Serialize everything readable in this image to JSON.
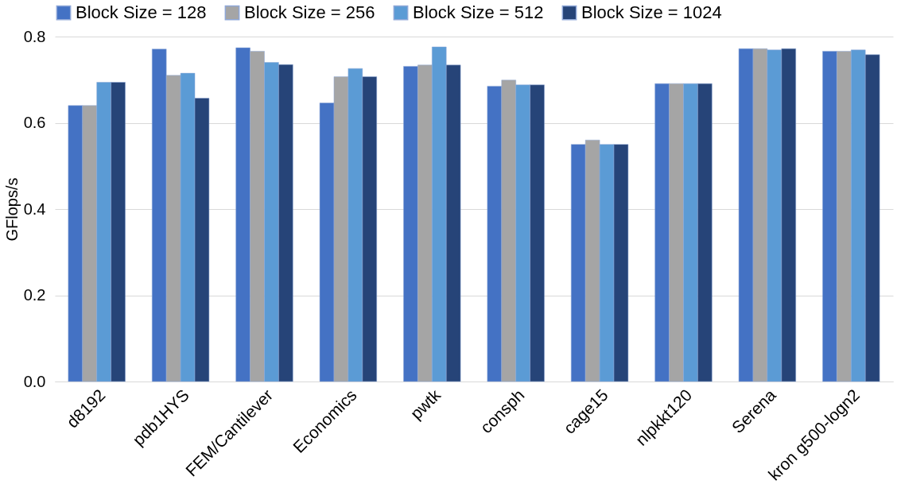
{
  "chart_data": {
    "type": "bar",
    "ylabel": "GFlops/s",
    "categories": [
      "d8192",
      "pdb1HYS",
      "FEM/Cantilever",
      "Economics",
      "pwtk",
      "consph",
      "cage15",
      "nlpkkt120",
      "Serena",
      "kron g500-logn2"
    ],
    "series": [
      {
        "name": "Block Size = 128",
        "color": "#4472c4",
        "values": [
          0.64,
          0.771,
          0.774,
          0.646,
          0.731,
          0.685,
          0.55,
          0.691,
          0.772,
          0.766
        ]
      },
      {
        "name": "Block Size = 256",
        "color": "#a5a5a5",
        "values": [
          0.64,
          0.71,
          0.766,
          0.707,
          0.734,
          0.699,
          0.56,
          0.691,
          0.772,
          0.766
        ]
      },
      {
        "name": "Block Size = 512",
        "color": "#5b9bd5",
        "values": [
          0.694,
          0.715,
          0.74,
          0.726,
          0.776,
          0.688,
          0.55,
          0.691,
          0.769,
          0.769
        ]
      },
      {
        "name": "Block Size = 1024",
        "color": "#264478",
        "values": [
          0.694,
          0.657,
          0.735,
          0.707,
          0.734,
          0.688,
          0.55,
          0.691,
          0.772,
          0.758
        ]
      }
    ],
    "ylim": [
      0,
      0.8
    ],
    "yticks": [
      {
        "value": 0,
        "label": "0.0"
      },
      {
        "value": 0.2,
        "label": "0.2"
      },
      {
        "value": 0.4,
        "label": "0.4"
      },
      {
        "value": 0.6,
        "label": "0.6"
      },
      {
        "value": 0.8,
        "label": "0.8"
      }
    ],
    "grid": "y",
    "legend": "top"
  }
}
